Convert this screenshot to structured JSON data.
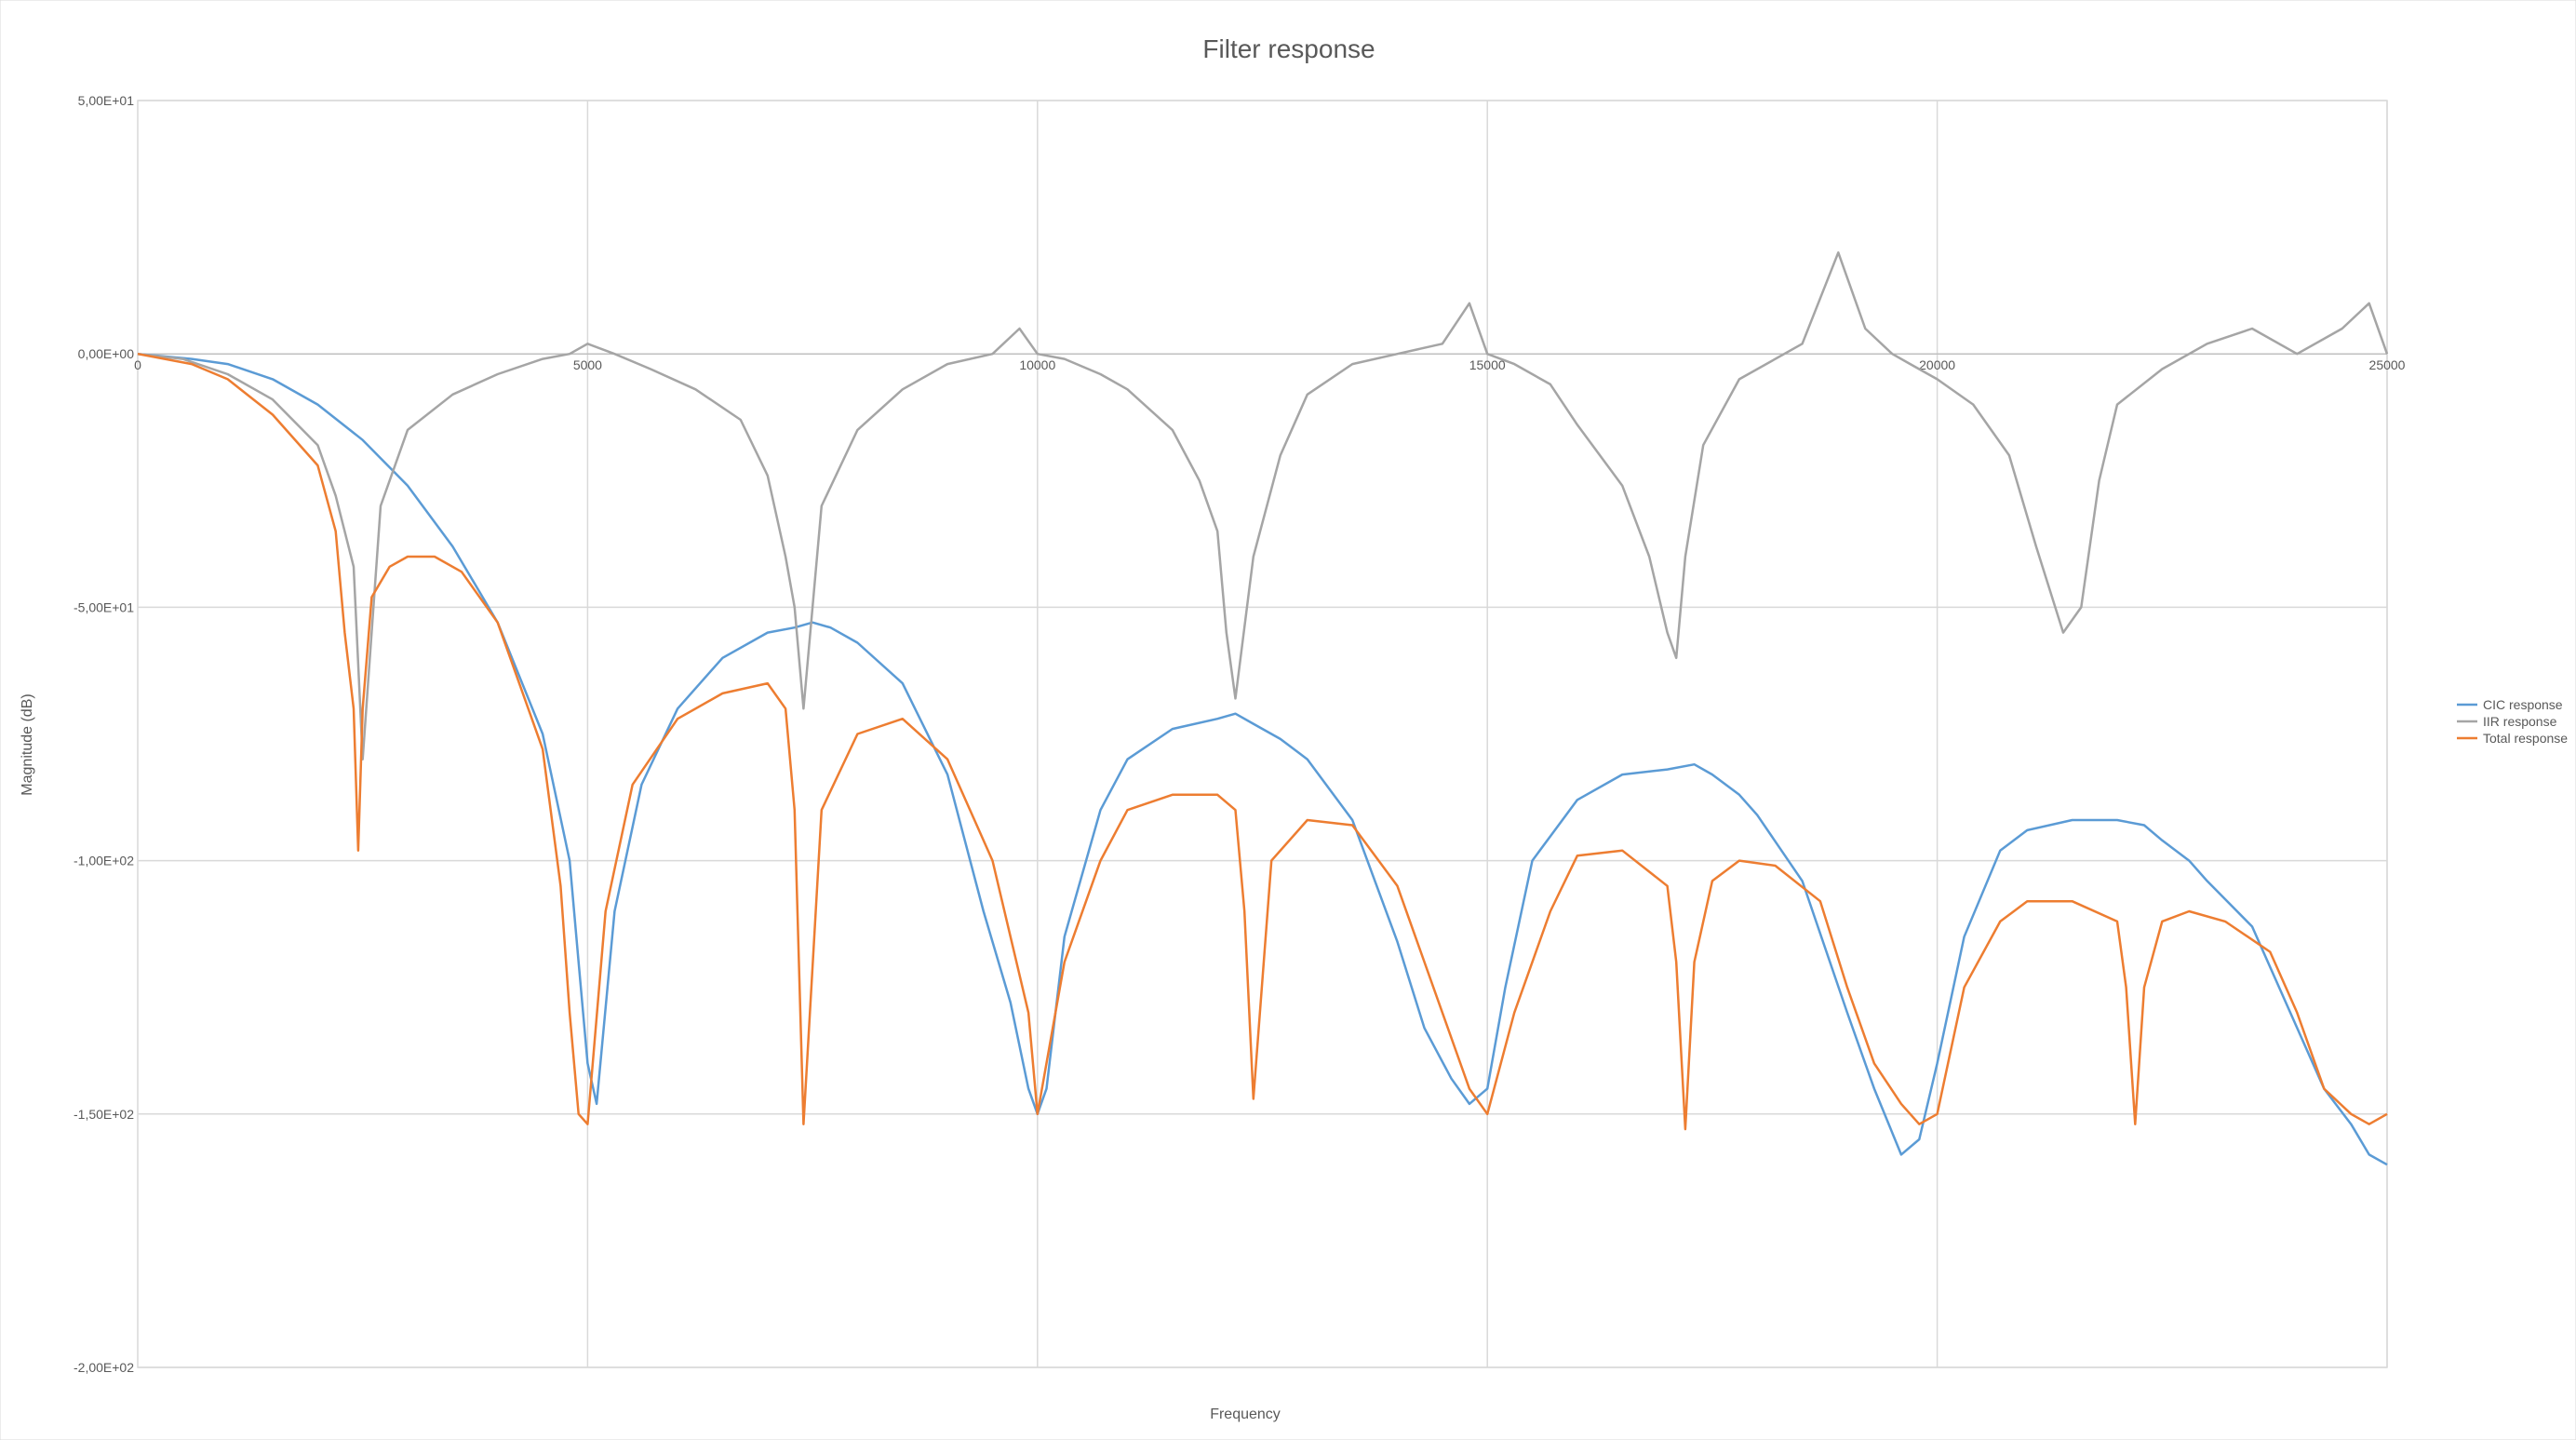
{
  "chart_data": {
    "type": "line",
    "title": "Filter response",
    "xlabel": "Frequency",
    "ylabel": "Magnitude (dB)",
    "xlim": [
      0,
      25000
    ],
    "ylim": [
      -200,
      50
    ],
    "x_ticks": [
      {
        "value": 0,
        "label": "0"
      },
      {
        "value": 5000,
        "label": "5000"
      },
      {
        "value": 10000,
        "label": "10000"
      },
      {
        "value": 15000,
        "label": "15000"
      },
      {
        "value": 20000,
        "label": "20000"
      },
      {
        "value": 25000,
        "label": "25000"
      }
    ],
    "y_ticks": [
      {
        "value": 50,
        "label": "5,00E+01"
      },
      {
        "value": 0,
        "label": "0,00E+00"
      },
      {
        "value": -50,
        "label": "-5,00E+01"
      },
      {
        "value": -100,
        "label": "-1,00E+02"
      },
      {
        "value": -150,
        "label": "-1,50E+02"
      },
      {
        "value": -200,
        "label": "-2,00E+02"
      }
    ],
    "grid": true,
    "legend_position": "right",
    "series": [
      {
        "name": "CIC response",
        "color": "#5B9BD5",
        "x": [
          0,
          600,
          1000,
          1500,
          2000,
          2500,
          3000,
          3500,
          4000,
          4500,
          4800,
          4900,
          5000,
          5100,
          5300,
          5600,
          6000,
          6500,
          7000,
          7300,
          7500,
          7700,
          8000,
          8500,
          9000,
          9400,
          9700,
          9900,
          10000,
          10100,
          10300,
          10700,
          11000,
          11500,
          12000,
          12200,
          12400,
          12700,
          13000,
          13500,
          14000,
          14300,
          14600,
          14800,
          15000,
          15200,
          15500,
          16000,
          16500,
          17000,
          17300,
          17500,
          17800,
          18000,
          18500,
          19000,
          19300,
          19600,
          19800,
          20000,
          20300,
          20700,
          21000,
          21500,
          22000,
          22300,
          22500,
          22800,
          23000,
          23500,
          24000,
          24300,
          24600,
          24800,
          25000
        ],
        "y": [
          0,
          -1,
          -2,
          -5,
          -10,
          -17,
          -26,
          -38,
          -53,
          -75,
          -100,
          -120,
          -140,
          -148,
          -110,
          -85,
          -70,
          -60,
          -55,
          -54,
          -53,
          -54,
          -57,
          -65,
          -83,
          -110,
          -128,
          -145,
          -150,
          -145,
          -115,
          -90,
          -80,
          -74,
          -72,
          -71,
          -73,
          -76,
          -80,
          -92,
          -116,
          -133,
          -143,
          -148,
          -145,
          -125,
          -100,
          -88,
          -83,
          -82,
          -81,
          -83,
          -87,
          -91,
          -104,
          -130,
          -145,
          -158,
          -155,
          -140,
          -115,
          -98,
          -94,
          -92,
          -92,
          -93,
          -96,
          -100,
          -104,
          -113,
          -133,
          -145,
          -152,
          -158,
          -160
        ]
      },
      {
        "name": "IIR response",
        "color": "#A5A5A5",
        "x": [
          0,
          500,
          1000,
          1500,
          2000,
          2200,
          2400,
          2500,
          2700,
          3000,
          3500,
          4000,
          4500,
          4800,
          5000,
          5300,
          5700,
          6200,
          6700,
          7000,
          7200,
          7300,
          7400,
          7600,
          8000,
          8500,
          9000,
          9500,
          9800,
          10000,
          10300,
          10700,
          11000,
          11500,
          11800,
          12000,
          12100,
          12200,
          12400,
          12700,
          13000,
          13500,
          14000,
          14500,
          14800,
          15000,
          15300,
          15700,
          16000,
          16500,
          16800,
          17000,
          17100,
          17200,
          17400,
          17800,
          18500,
          18900,
          19200,
          19500,
          19700,
          20000,
          20400,
          20800,
          21100,
          21400,
          21600,
          21800,
          22000,
          22500,
          23000,
          23500,
          24000,
          24500,
          24800,
          25000
        ],
        "y": [
          0,
          -1,
          -4,
          -9,
          -18,
          -28,
          -42,
          -80,
          -30,
          -15,
          -8,
          -4,
          -1,
          0,
          2,
          0,
          -3,
          -7,
          -13,
          -24,
          -40,
          -50,
          -70,
          -30,
          -15,
          -7,
          -2,
          0,
          5,
          0,
          -1,
          -4,
          -7,
          -15,
          -25,
          -35,
          -55,
          -68,
          -40,
          -20,
          -8,
          -2,
          0,
          2,
          10,
          0,
          -2,
          -6,
          -14,
          -26,
          -40,
          -55,
          -60,
          -40,
          -18,
          -5,
          2,
          20,
          5,
          0,
          -2,
          -5,
          -10,
          -20,
          -38,
          -55,
          -50,
          -25,
          -10,
          -3,
          2,
          5,
          0,
          5,
          10,
          0
        ]
      },
      {
        "name": "Total response",
        "color": "#ED7D31",
        "x": [
          0,
          600,
          1000,
          1500,
          2000,
          2200,
          2300,
          2400,
          2450,
          2500,
          2600,
          2800,
          3000,
          3300,
          3600,
          4000,
          4500,
          4700,
          4800,
          4900,
          5000,
          5200,
          5500,
          6000,
          6500,
          7000,
          7200,
          7300,
          7400,
          7600,
          8000,
          8500,
          9000,
          9500,
          9700,
          9900,
          10000,
          10300,
          10700,
          11000,
          11500,
          12000,
          12200,
          12300,
          12400,
          12600,
          13000,
          13500,
          14000,
          14500,
          14800,
          15000,
          15300,
          15700,
          16000,
          16500,
          17000,
          17100,
          17200,
          17300,
          17500,
          17800,
          18200,
          18700,
          19000,
          19300,
          19600,
          19800,
          20000,
          20300,
          20700,
          21000,
          21500,
          22000,
          22100,
          22200,
          22300,
          22500,
          22800,
          23200,
          23700,
          24000,
          24300,
          24600,
          24800,
          25000
        ],
        "y": [
          0,
          -2,
          -5,
          -12,
          -22,
          -35,
          -55,
          -70,
          -98,
          -70,
          -48,
          -42,
          -40,
          -40,
          -43,
          -53,
          -78,
          -105,
          -130,
          -150,
          -152,
          -110,
          -85,
          -72,
          -67,
          -65,
          -70,
          -90,
          -152,
          -90,
          -75,
          -72,
          -80,
          -100,
          -115,
          -130,
          -150,
          -120,
          -100,
          -90,
          -87,
          -87,
          -90,
          -110,
          -147,
          -100,
          -92,
          -93,
          -105,
          -130,
          -145,
          -150,
          -130,
          -110,
          -99,
          -98,
          -105,
          -120,
          -153,
          -120,
          -104,
          -100,
          -101,
          -108,
          -125,
          -140,
          -148,
          -152,
          -150,
          -125,
          -112,
          -108,
          -108,
          -112,
          -125,
          -152,
          -125,
          -112,
          -110,
          -112,
          -118,
          -130,
          -145,
          -150,
          -152,
          -150
        ]
      }
    ]
  }
}
